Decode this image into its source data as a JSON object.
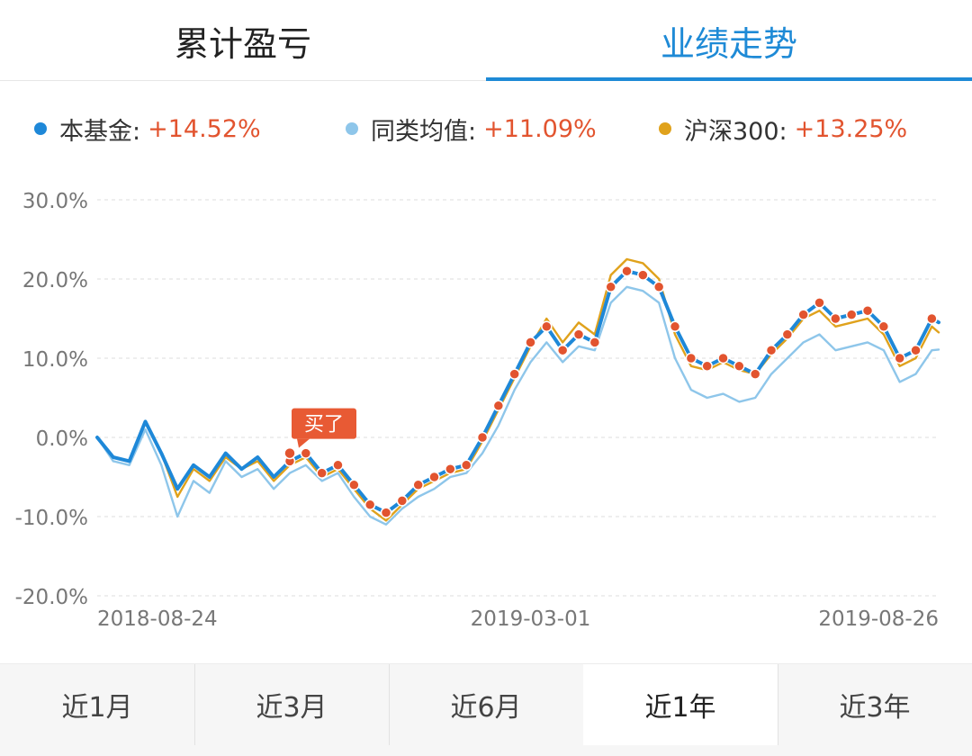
{
  "tabs": {
    "left": "累计盈亏",
    "right": "业绩走势",
    "active": "right"
  },
  "legend": [
    {
      "label": "本基金:",
      "value": "+14.52%",
      "color": "#1e88d8"
    },
    {
      "label": "同类均值:",
      "value": "+11.09%",
      "color": "#8ec6ea"
    },
    {
      "label": "沪深300:",
      "value": "+13.25%",
      "color": "#e0a21c"
    }
  ],
  "chart_data": {
    "type": "line",
    "y_ticks": [
      "30.0%",
      "20.0%",
      "10.0%",
      "0.0%",
      "-10.0%",
      "-20.0%"
    ],
    "ylim": [
      -20,
      30
    ],
    "x_ticks": [
      "2018-08-24",
      "2019-03-01",
      "2019-08-26"
    ],
    "x": [
      "2018-08-24",
      "2018-08-31",
      "2018-09-07",
      "2018-09-14",
      "2018-09-21",
      "2018-09-28",
      "2018-10-05",
      "2018-10-12",
      "2018-10-19",
      "2018-10-26",
      "2018-11-02",
      "2018-11-09",
      "2018-11-16",
      "2018-11-23",
      "2018-11-30",
      "2018-12-07",
      "2018-12-14",
      "2018-12-21",
      "2018-12-28",
      "2019-01-04",
      "2019-01-11",
      "2019-01-18",
      "2019-01-25",
      "2019-02-01",
      "2019-02-08",
      "2019-02-15",
      "2019-02-22",
      "2019-03-01",
      "2019-03-08",
      "2019-03-15",
      "2019-03-22",
      "2019-03-29",
      "2019-04-05",
      "2019-04-12",
      "2019-04-19",
      "2019-04-26",
      "2019-05-03",
      "2019-05-10",
      "2019-05-17",
      "2019-05-24",
      "2019-05-31",
      "2019-06-07",
      "2019-06-14",
      "2019-06-21",
      "2019-06-28",
      "2019-07-05",
      "2019-07-12",
      "2019-07-19",
      "2019-07-26",
      "2019-08-02",
      "2019-08-09",
      "2019-08-16",
      "2019-08-23",
      "2019-08-26"
    ],
    "series": [
      {
        "name": "本基金",
        "color": "#1e88d8",
        "values": [
          0.0,
          -2.5,
          -3.0,
          2.0,
          -2.0,
          -6.5,
          -3.5,
          -5.0,
          -2.0,
          -4.0,
          -2.5,
          -5.0,
          -3.0,
          -2.0,
          -4.5,
          -3.5,
          -6.0,
          -8.5,
          -9.5,
          -8.0,
          -6.0,
          -5.0,
          -4.0,
          -3.5,
          0.0,
          4.0,
          8.0,
          12.0,
          14.0,
          11.0,
          13.0,
          12.0,
          19.0,
          21.0,
          20.5,
          19.0,
          14.0,
          10.0,
          9.0,
          10.0,
          9.0,
          8.0,
          11.0,
          13.0,
          15.5,
          17.0,
          15.0,
          15.5,
          16.0,
          14.0,
          10.0,
          11.0,
          15.0,
          14.52
        ]
      },
      {
        "name": "同类均值",
        "color": "#8ec6ea",
        "values": [
          0.0,
          -3.0,
          -3.5,
          1.0,
          -3.5,
          -10.0,
          -5.5,
          -7.0,
          -3.0,
          -5.0,
          -4.0,
          -6.5,
          -4.5,
          -3.5,
          -5.5,
          -4.5,
          -7.5,
          -10.0,
          -11.0,
          -9.0,
          -7.5,
          -6.5,
          -5.0,
          -4.5,
          -2.0,
          1.5,
          6.0,
          9.5,
          12.0,
          9.5,
          11.5,
          11.0,
          17.0,
          19.0,
          18.5,
          17.0,
          10.0,
          6.0,
          5.0,
          5.5,
          4.5,
          5.0,
          8.0,
          10.0,
          12.0,
          13.0,
          11.0,
          11.5,
          12.0,
          11.0,
          7.0,
          8.0,
          11.0,
          11.09
        ]
      },
      {
        "name": "沪深300",
        "color": "#e0a21c",
        "values": [
          0.0,
          -2.5,
          -3.0,
          2.0,
          -2.0,
          -7.5,
          -4.0,
          -5.5,
          -2.5,
          -4.0,
          -3.0,
          -5.5,
          -3.5,
          -2.5,
          -5.0,
          -4.0,
          -6.5,
          -9.0,
          -10.5,
          -8.5,
          -6.5,
          -5.5,
          -4.5,
          -4.0,
          -0.5,
          3.5,
          7.5,
          11.5,
          15.0,
          12.0,
          14.5,
          13.0,
          20.5,
          22.5,
          22.0,
          20.0,
          13.0,
          9.0,
          8.5,
          9.5,
          8.5,
          8.0,
          10.5,
          12.5,
          15.0,
          16.0,
          14.0,
          14.5,
          15.0,
          13.0,
          9.0,
          10.0,
          14.0,
          13.25
        ]
      }
    ],
    "markers": [
      {
        "x": "2018-11-16",
        "y": -2.0,
        "label": "买了"
      }
    ],
    "grid": true
  },
  "periods": [
    {
      "label": "近1月",
      "active": false
    },
    {
      "label": "近3月",
      "active": false
    },
    {
      "label": "近6月",
      "active": false
    },
    {
      "label": "近1年",
      "active": true
    },
    {
      "label": "近3年",
      "active": false
    }
  ]
}
